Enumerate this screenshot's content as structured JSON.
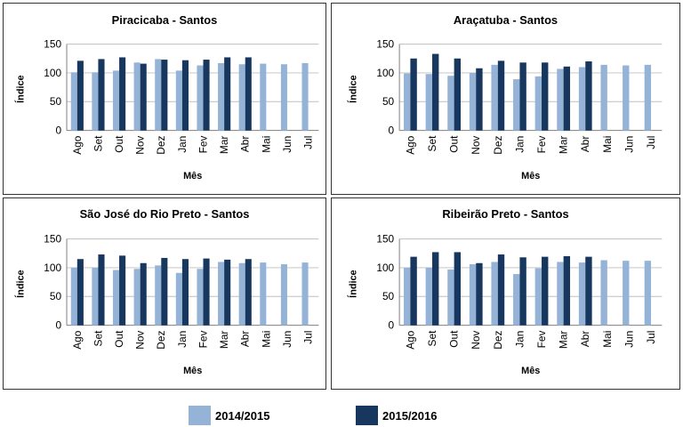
{
  "chart_data": [
    {
      "type": "bar",
      "title": "Piracicaba - Santos",
      "xlabel": "Mês",
      "ylabel": "Índice",
      "categories": [
        "Ago",
        "Set",
        "Out",
        "Nov",
        "Dez",
        "Jan",
        "Fev",
        "Mar",
        "Abr",
        "Mai",
        "Jun",
        "Jul"
      ],
      "ylim": [
        0,
        150
      ],
      "yticks": [
        0,
        50,
        100,
        150
      ],
      "series": [
        {
          "name": "2014/2015",
          "values": [
            101,
            101,
            104,
            118,
            124,
            104,
            113,
            117,
            115,
            116,
            115,
            117
          ]
        },
        {
          "name": "2015/2016",
          "values": [
            121,
            124,
            127,
            116,
            123,
            122,
            123,
            127,
            127,
            null,
            null,
            null
          ]
        }
      ]
    },
    {
      "type": "bar",
      "title": "Araçatuba - Santos",
      "xlabel": "Mês",
      "ylabel": "Índice",
      "categories": [
        "Ago",
        "Set",
        "Out",
        "Nov",
        "Dez",
        "Jan",
        "Fev",
        "Mar",
        "Abr",
        "Mai",
        "Jun",
        "Jul"
      ],
      "ylim": [
        0,
        150
      ],
      "yticks": [
        0,
        50,
        100,
        150
      ],
      "series": [
        {
          "name": "2014/2015",
          "values": [
            99,
            98,
            95,
            100,
            114,
            89,
            94,
            107,
            110,
            114,
            113,
            114
          ]
        },
        {
          "name": "2015/2016",
          "values": [
            125,
            133,
            125,
            108,
            121,
            118,
            118,
            111,
            120,
            null,
            null,
            null
          ]
        }
      ]
    },
    {
      "type": "bar",
      "title": "São José do Rio Preto - Santos",
      "xlabel": "Mês",
      "ylabel": "Índice",
      "categories": [
        "Ago",
        "Set",
        "Out",
        "Nov",
        "Dez",
        "Jan",
        "Fev",
        "Mar",
        "Abr",
        "Mai",
        "Jun",
        "Jul"
      ],
      "ylim": [
        0,
        150
      ],
      "yticks": [
        0,
        50,
        100,
        150
      ],
      "series": [
        {
          "name": "2014/2015",
          "values": [
            100,
            100,
            96,
            98,
            104,
            91,
            98,
            110,
            108,
            109,
            106,
            109
          ]
        },
        {
          "name": "2015/2016",
          "values": [
            115,
            123,
            121,
            108,
            117,
            115,
            116,
            114,
            115,
            null,
            null,
            null
          ]
        }
      ]
    },
    {
      "type": "bar",
      "title": "Ribeirão Preto - Santos",
      "xlabel": "Mês",
      "ylabel": "Índice",
      "categories": [
        "Ago",
        "Set",
        "Out",
        "Nov",
        "Dez",
        "Jan",
        "Fev",
        "Mar",
        "Abr",
        "Mai",
        "Jun",
        "Jul"
      ],
      "ylim": [
        0,
        150
      ],
      "yticks": [
        0,
        50,
        100,
        150
      ],
      "series": [
        {
          "name": "2014/2015",
          "values": [
            100,
            100,
            97,
            106,
            110,
            89,
            99,
            110,
            109,
            113,
            112,
            112
          ]
        },
        {
          "name": "2015/2016",
          "values": [
            119,
            127,
            127,
            108,
            123,
            118,
            119,
            120,
            119,
            null,
            null,
            null
          ]
        }
      ]
    }
  ],
  "legend": [
    {
      "label": "2014/2015",
      "color": "#95b3d7"
    },
    {
      "label": "2015/2016",
      "color": "#17375e"
    }
  ],
  "colors": {
    "series_2014_2015": "#95b3d7",
    "series_2015_2016": "#17375e",
    "gridline": "#bfbfbf",
    "axis": "#7f7f7f"
  }
}
